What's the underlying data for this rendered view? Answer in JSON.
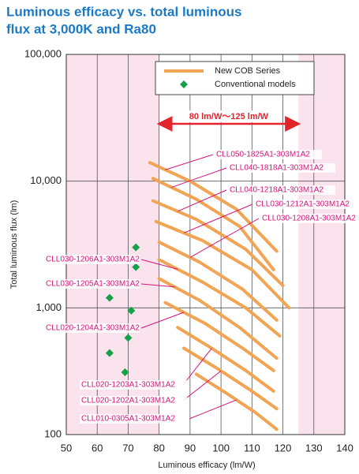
{
  "chart_data": {
    "type": "line",
    "title": "Luminous efficacy vs. total luminous flux at 3,000K and Ra80",
    "x_label": "Luminous efficacy (lm/W)",
    "y_label": "Total luminous flux (lm)",
    "xlim": [
      50,
      140
    ],
    "xticks": [
      50,
      60,
      70,
      80,
      90,
      100,
      110,
      120,
      130,
      140
    ],
    "ylim": [
      100,
      100000
    ],
    "yticks": [
      100,
      {
        "value": 1000,
        "label": "1,000"
      },
      {
        "value": 10000,
        "label": "10,000"
      },
      {
        "value": 100000,
        "label": "100,000"
      }
    ],
    "log_y": true,
    "grid": true,
    "range_annotation": {
      "label": "80 lm/W～125 lm/W",
      "range": [
        80,
        125
      ],
      "color": "#e3242b"
    },
    "series": [
      {
        "name": "New COB Series",
        "type": "line",
        "color": "#f2a455",
        "lines": [
          {
            "label": "CLL050-1825A1-303M1A2",
            "x": [
              77,
              90,
              105,
              118
            ],
            "values": [
              14000,
              10000,
              6000,
              2800
            ]
          },
          {
            "label": "CLL040-1818A1-303M1A2",
            "x": [
              78,
              92,
              106,
              117
            ],
            "values": [
              10500,
              7200,
              4400,
              2000
            ]
          },
          {
            "label": "CLL040-1218A1-303M1A2",
            "x": [
              78,
              92,
              108,
              120
            ],
            "values": [
              7000,
              5000,
              2900,
              1500
            ]
          },
          {
            "label": "CLL030-1212A1-303M1A2",
            "x": [
              79,
              94,
              110,
              122
            ],
            "values": [
              4800,
              3400,
              2000,
              1000
            ]
          },
          {
            "label": "CLL030-1208A1-303M1A2",
            "x": [
              80,
              93,
              107,
              118
            ],
            "values": [
              3300,
              2300,
              1400,
              800
            ]
          },
          {
            "label": "CLL030-1206A1-303M1A2",
            "x": [
              80,
              94,
              108,
              119
            ],
            "values": [
              2400,
              1600,
              1000,
              600
            ]
          },
          {
            "label": "CLL030-1205A1-303M1A2",
            "x": [
              80,
              93,
              106,
              118
            ],
            "values": [
              1700,
              1150,
              700,
              400
            ]
          },
          {
            "label": "CLL020-1204A1-303M1A2",
            "x": [
              82,
              95,
              107,
              117
            ],
            "values": [
              1100,
              750,
              480,
              320
            ]
          },
          {
            "label": "CLL020-1203A1-303M1A2",
            "x": [
              86,
              97,
              108,
              117
            ],
            "values": [
              700,
              480,
              320,
              220
            ]
          },
          {
            "label": "CLL020-1202A1-303M1A2",
            "x": [
              88,
              99,
              110,
              118
            ],
            "values": [
              480,
              330,
              220,
              160
            ]
          },
          {
            "label": "CLL010-0305A1-303M1A2",
            "x": [
              92,
              102,
              111,
              118
            ],
            "values": [
              300,
              210,
              150,
              110
            ]
          }
        ]
      },
      {
        "name": "Conventional models",
        "type": "scatter",
        "color": "#17a04a",
        "x": [
          72.5,
          72.5,
          64,
          71,
          70,
          64,
          69
        ],
        "values": [
          3000,
          2100,
          1200,
          950,
          580,
          440,
          310
        ]
      }
    ]
  }
}
